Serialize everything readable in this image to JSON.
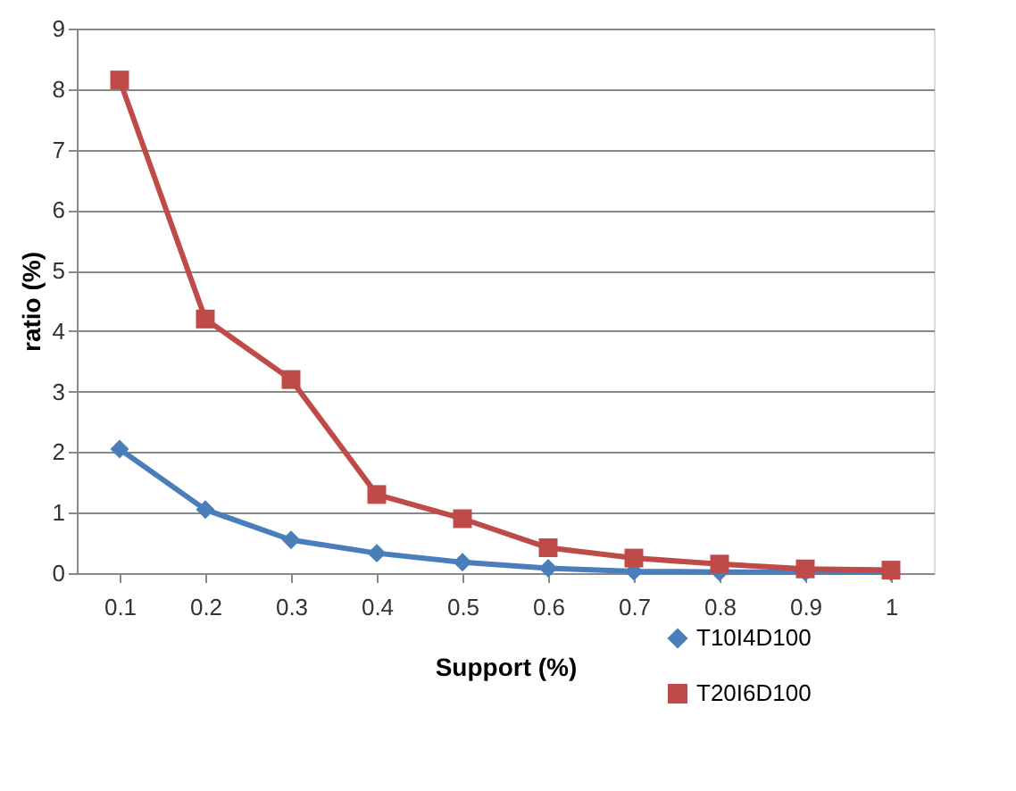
{
  "chart_data": {
    "type": "line",
    "xlabel": "Support (%)",
    "ylabel": "ratio (%)",
    "categories": [
      "0.1",
      "0.2",
      "0.3",
      "0.4",
      "0.5",
      "0.6",
      "0.7",
      "0.8",
      "0.9",
      "1"
    ],
    "series": [
      {
        "name": "T10I4D100",
        "color": "#4a7ebb",
        "marker": "diamond",
        "values": [
          2.05,
          1.05,
          0.55,
          0.33,
          0.18,
          0.08,
          0.03,
          0.02,
          0.02,
          0.02
        ]
      },
      {
        "name": "T20I6D100",
        "color": "#be4b48",
        "marker": "square",
        "values": [
          8.15,
          4.2,
          3.2,
          1.3,
          0.9,
          0.42,
          0.25,
          0.15,
          0.07,
          0.05
        ]
      }
    ],
    "ylim": [
      0,
      9
    ],
    "yticks": [
      0,
      1,
      2,
      3,
      4,
      5,
      6,
      7,
      8,
      9
    ],
    "grid": "y",
    "legend": "bottom right"
  }
}
